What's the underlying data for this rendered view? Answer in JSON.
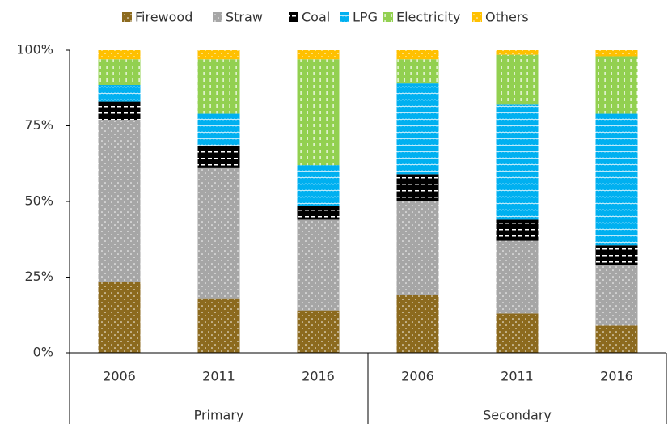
{
  "chart_data": {
    "type": "stacked_bar",
    "categories": [
      "2006",
      "2011",
      "2016",
      "2006",
      "2011",
      "2016"
    ],
    "groups": [
      {
        "name": "Primary",
        "count": 3
      },
      {
        "name": "Secondary",
        "count": 3
      }
    ],
    "series": [
      {
        "name": "Firewood",
        "color": "#8c6a1e",
        "values": [
          23.5,
          18,
          14,
          19,
          13,
          9
        ]
      },
      {
        "name": "Straw",
        "color": "#a6a6a6",
        "values": [
          53.5,
          43,
          30,
          31,
          24,
          20
        ]
      },
      {
        "name": "Coal",
        "color": "#000000",
        "values": [
          6,
          7.5,
          4.5,
          9,
          7,
          6.5
        ]
      },
      {
        "name": "LPG",
        "color": "#00b0f0",
        "values": [
          5.5,
          10.5,
          13.5,
          30,
          38,
          43.5
        ]
      },
      {
        "name": "Electricity",
        "color": "#92d050",
        "values": [
          8.5,
          18,
          35,
          8,
          16.5,
          19
        ]
      },
      {
        "name": "Others",
        "color": "#ffc000",
        "values": [
          3,
          3,
          3,
          3,
          1.5,
          2
        ]
      }
    ],
    "ylim": [
      0,
      100
    ],
    "yticks": [
      {
        "value": 0,
        "label": "0%"
      },
      {
        "value": 25,
        "label": "25%"
      },
      {
        "value": 50,
        "label": "50%"
      },
      {
        "value": 75,
        "label": "75%"
      },
      {
        "value": 100,
        "label": "100%"
      }
    ],
    "legend": "top"
  }
}
